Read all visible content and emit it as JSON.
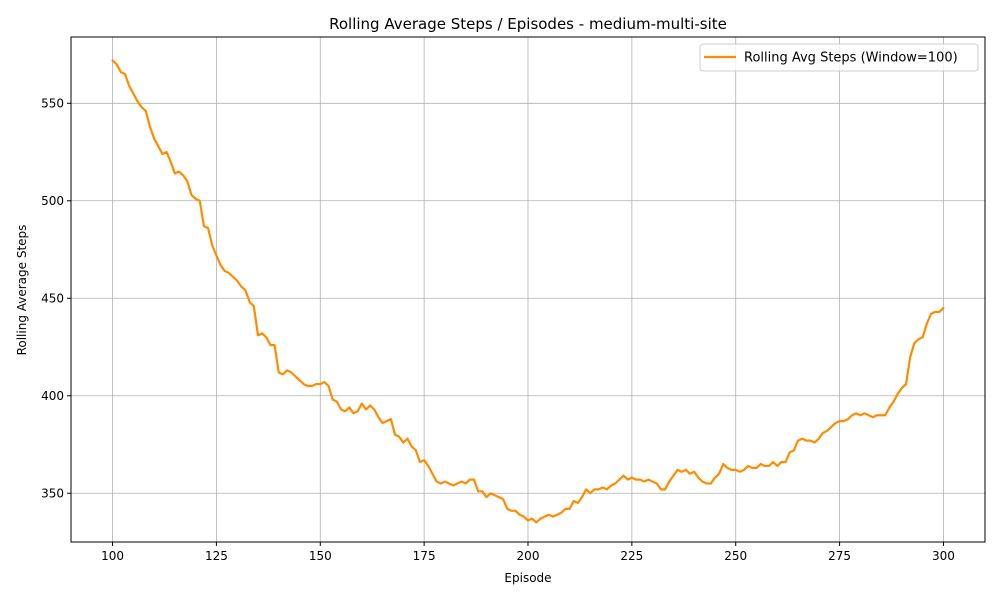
{
  "chart_data": {
    "type": "line",
    "title": "Rolling Average Steps / Episodes - medium-multi-site",
    "xlabel": "Episode",
    "ylabel": "Rolling Average Steps",
    "xlim": [
      90,
      310
    ],
    "ylim": [
      325,
      584
    ],
    "xticks": [
      100,
      125,
      150,
      175,
      200,
      225,
      250,
      275,
      300
    ],
    "yticks": [
      350,
      400,
      450,
      500,
      550
    ],
    "grid": true,
    "legend_position": "top-right",
    "series": [
      {
        "name": "Rolling Avg Steps (Window=100)",
        "color": "#ff8c00",
        "x": [
          100,
          101,
          102,
          103,
          104,
          105,
          106,
          107,
          108,
          109,
          110,
          111,
          112,
          113,
          114,
          115,
          116,
          117,
          118,
          119,
          120,
          121,
          122,
          123,
          124,
          125,
          126,
          127,
          128,
          129,
          130,
          131,
          132,
          133,
          134,
          135,
          136,
          137,
          138,
          139,
          140,
          141,
          142,
          143,
          144,
          145,
          146,
          147,
          148,
          149,
          150,
          151,
          152,
          153,
          154,
          155,
          156,
          157,
          158,
          159,
          160,
          161,
          162,
          163,
          164,
          165,
          166,
          167,
          168,
          169,
          170,
          171,
          172,
          173,
          174,
          175,
          176,
          177,
          178,
          179,
          180,
          181,
          182,
          183,
          184,
          185,
          186,
          187,
          188,
          189,
          190,
          191,
          192,
          193,
          194,
          195,
          196,
          197,
          198,
          199,
          200,
          201,
          202,
          203,
          204,
          205,
          206,
          207,
          208,
          209,
          210,
          211,
          212,
          213,
          214,
          215,
          216,
          217,
          218,
          219,
          220,
          221,
          222,
          223,
          224,
          225,
          226,
          227,
          228,
          229,
          230,
          231,
          232,
          233,
          234,
          235,
          236,
          237,
          238,
          239,
          240,
          241,
          242,
          243,
          244,
          245,
          246,
          247,
          248,
          249,
          250,
          251,
          252,
          253,
          254,
          255,
          256,
          257,
          258,
          259,
          260,
          261,
          262,
          263,
          264,
          265,
          266,
          267,
          268,
          269,
          270,
          271,
          272,
          273,
          274,
          275,
          276,
          277,
          278,
          279,
          280,
          281,
          282,
          283,
          284,
          285,
          286,
          287,
          288,
          289,
          290,
          291,
          292,
          293,
          294,
          295,
          296,
          297,
          298,
          299,
          300
        ],
        "values": [
          572,
          570,
          566,
          565,
          559,
          555,
          551,
          548,
          546,
          538,
          532,
          528,
          524,
          525,
          520,
          514,
          515,
          513,
          510,
          503,
          501,
          500,
          487,
          486,
          477,
          472,
          467,
          464,
          463,
          461,
          459,
          456,
          454,
          448,
          446,
          431,
          432,
          430,
          426,
          426,
          412,
          411,
          413,
          412,
          410,
          408,
          406,
          405,
          405,
          406,
          406,
          407,
          405,
          398,
          397,
          393,
          392,
          394,
          391,
          392,
          396,
          393,
          395,
          393,
          389,
          386,
          387,
          388,
          380,
          379,
          376,
          378,
          374,
          372,
          366,
          367,
          364,
          360,
          356,
          355,
          356,
          355,
          354,
          355,
          356,
          355,
          357,
          357,
          351,
          351,
          348,
          350,
          349,
          348,
          347,
          342,
          341,
          341,
          339,
          338,
          336,
          337,
          335,
          337,
          338,
          339,
          338,
          339,
          340,
          342,
          342,
          346,
          345,
          348,
          352,
          350,
          352,
          352,
          353,
          352,
          354,
          355,
          357,
          359,
          357,
          358,
          357,
          357,
          356,
          357,
          356,
          355,
          352,
          352,
          356,
          359,
          362,
          361,
          362,
          360,
          361,
          358,
          356,
          355,
          355,
          358,
          360,
          365,
          363,
          362,
          362,
          361,
          362,
          364,
          363,
          363,
          365,
          364,
          364,
          366,
          364,
          366,
          366,
          371,
          372,
          377,
          378,
          377,
          377,
          376,
          378,
          381,
          382,
          384,
          386,
          387,
          387,
          388,
          390,
          391,
          390,
          391,
          390,
          389,
          390,
          390,
          390,
          394,
          397,
          401,
          404,
          406,
          420,
          427,
          429,
          430,
          437,
          442,
          443,
          443,
          445
        ]
      }
    ]
  }
}
